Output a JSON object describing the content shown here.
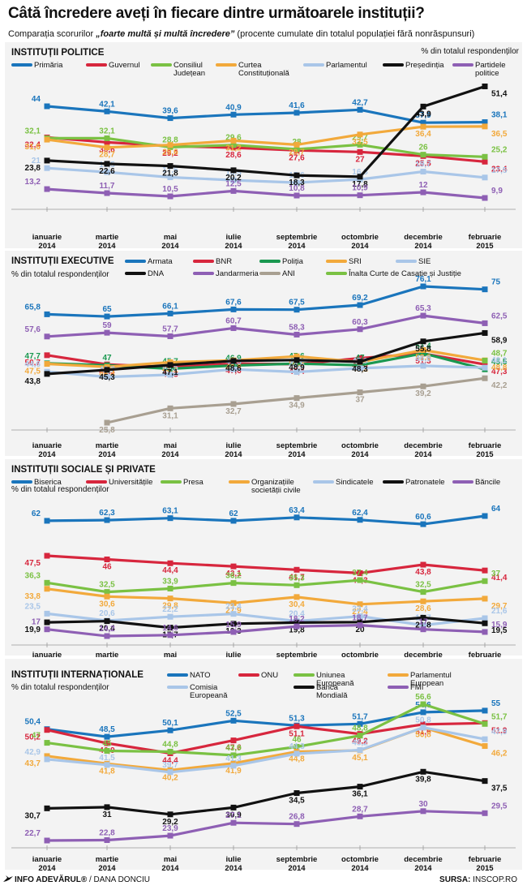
{
  "title": "Câtă încredere aveți în fiecare dintre următoarele instituții?",
  "subtitle_prefix": "Comparația scorurilor ",
  "subtitle_emphasis": "„foarte multă și multă încredere”",
  "subtitle_suffix": " (procente cumulate din totalul populației fără nonrăspunsuri)",
  "footer_left_bold": "INFO ADEVĂRUL®",
  "footer_left_rest": " / DANA DONCIU",
  "footer_right_label": "SURSA:",
  "footer_right_value": " INSCOP.RO",
  "chart_data": [
    {
      "type": "line",
      "title": "INSTITUȚII POLITICE",
      "ylabel": "% din totalul respondenților",
      "categories": [
        "ianuarie 2014",
        "martie 2014",
        "mai 2014",
        "iulie 2014",
        "septembrie 2014",
        "octombrie 2014",
        "decembrie 2014",
        "februarie 2015"
      ],
      "series": [
        {
          "name": "Primăria",
          "color": "#1a75bc",
          "values": [
            44,
            42.1,
            39.6,
            40.9,
            41.6,
            42.7,
            37.9,
            38.1
          ]
        },
        {
          "name": "Guvernul",
          "color": "#d7263d",
          "values": [
            32.4,
            30.6,
            29.2,
            28.6,
            27.6,
            27,
            25.5,
            23.4
          ]
        },
        {
          "name": "Consiliul Județean",
          "color": "#7ac143",
          "values": [
            32.1,
            32.1,
            28.8,
            29.6,
            28,
            29.7,
            26,
            25.2
          ]
        },
        {
          "name": "Curtea Constituțională",
          "color": "#f2a93b",
          "values": [
            31.6,
            28.7,
            29.6,
            31.2,
            29.7,
            33.5,
            36.4,
            36.5
          ]
        },
        {
          "name": "Parlamentul",
          "color": "#a9c6e8",
          "values": [
            21,
            19.5,
            17.6,
            16.5,
            15.6,
            16.8,
            19.7,
            17.5
          ]
        },
        {
          "name": "Președinția",
          "color": "#111111",
          "values": [
            23.8,
            22.6,
            21.8,
            20.2,
            18.3,
            17.8,
            43.9,
            51.4
          ]
        },
        {
          "name": "Partidele politice",
          "color": "#8e5fb4",
          "values": [
            13.2,
            11.7,
            10.5,
            12.5,
            10.8,
            10.9,
            12,
            9.9
          ]
        }
      ]
    },
    {
      "type": "line",
      "title": "INSTITUȚII EXECUTIVE",
      "ylabel": "% din totalul respondenților",
      "categories": [
        "ianuarie 2014",
        "martie 2014",
        "mai 2014",
        "iulie 2014",
        "septembrie 2014",
        "octombrie 2014",
        "decembrie 2014",
        "februarie 2015"
      ],
      "series": [
        {
          "name": "Armata",
          "color": "#1a75bc",
          "values": [
            65.8,
            65,
            66.1,
            67.6,
            67.5,
            69.2,
            76.1,
            75
          ]
        },
        {
          "name": "BNR",
          "color": "#d7263d",
          "values": [
            50.7,
            47.3,
            46.3,
            47.6,
            47.4,
            49.6,
            51.3,
            47.3
          ]
        },
        {
          "name": "Poliția",
          "color": "#1a9850",
          "values": [
            47.7,
            47,
            45.7,
            46.9,
            47.6,
            47,
            51.4,
            45.5
          ]
        },
        {
          "name": "SRI",
          "color": "#f2a93b",
          "values": [
            47.5,
            46.4,
            48.1,
            48.8,
            50.3,
            48.2,
            52.6,
            48.8
          ]
        },
        {
          "name": "SIE",
          "color": "#a9c6e8",
          "values": [
            44.6,
            42.7,
            43.5,
            45.5,
            44.5,
            45.9,
            46.8,
            46.1
          ]
        },
        {
          "name": "DNA",
          "color": "#111111",
          "values": [
            43.8,
            45.3,
            47.1,
            48.6,
            48.9,
            48.3,
            55.8,
            58.9
          ]
        },
        {
          "name": "Jandarmeria",
          "color": "#8e5fb4",
          "values": [
            57.6,
            59,
            57.7,
            60.7,
            58.3,
            60.3,
            65.3,
            62.5
          ]
        },
        {
          "name": "ANI",
          "color": "#a89f91",
          "values": [
            null,
            25.8,
            31.1,
            32.7,
            34.9,
            37,
            39.2,
            42.2
          ]
        },
        {
          "name": "Înalta Curte de Casație și Justiție",
          "color": "#7ac143",
          "values": [
            null,
            null,
            null,
            null,
            null,
            null,
            null,
            48.7
          ]
        }
      ]
    },
    {
      "type": "line",
      "title": "INSTITUȚII SOCIALE ȘI PRIVATE",
      "ylabel": "% din totalul respondenților",
      "categories": [
        "ianuarie 2014",
        "martie 2014",
        "mai 2014",
        "iulie 2014",
        "septembrie 2014",
        "octombrie 2014",
        "decembrie 2014",
        "februarie 2015"
      ],
      "series": [
        {
          "name": "Biserica",
          "color": "#1a75bc",
          "values": [
            62,
            62.3,
            63.1,
            62,
            63.4,
            62.4,
            60.6,
            64
          ]
        },
        {
          "name": "Universitățile",
          "color": "#d7263d",
          "values": [
            47.5,
            46,
            44.4,
            43.1,
            41.7,
            40.3,
            43.8,
            41.4
          ]
        },
        {
          "name": "Presa",
          "color": "#7ac143",
          "values": [
            36.3,
            32.5,
            33.9,
            36.2,
            35.3,
            37.4,
            32.5,
            37
          ]
        },
        {
          "name": "Organizațiile societății civile",
          "color": "#f2a93b",
          "values": [
            33.8,
            30.6,
            29.8,
            27.9,
            30.4,
            27.4,
            28.6,
            29.7
          ]
        },
        {
          "name": "Sindicatele",
          "color": "#a9c6e8",
          "values": [
            23.5,
            20.6,
            22.2,
            23.4,
            20.4,
            22.4,
            18.7,
            21.6
          ]
        },
        {
          "name": "Patronatele",
          "color": "#111111",
          "values": [
            19.9,
            20.4,
            17.7,
            19.3,
            19.8,
            20,
            21.8,
            19.5
          ]
        },
        {
          "name": "Băncile",
          "color": "#8e5fb4",
          "values": [
            17,
            14.2,
            14.6,
            15.9,
            18.2,
            18.7,
            17,
            15.9
          ]
        }
      ]
    },
    {
      "type": "line",
      "title": "INSTITUȚII INTERNAȚIONALE",
      "ylabel": "% din totalul respondenților",
      "categories": [
        "ianuarie 2014",
        "martie 2014",
        "mai 2014",
        "iulie 2014",
        "septembrie 2014",
        "octombrie 2014",
        "decembrie 2014",
        "februarie 2015"
      ],
      "series": [
        {
          "name": "NATO",
          "color": "#1a75bc",
          "values": [
            50.4,
            48.5,
            50.1,
            52.5,
            51.3,
            51.7,
            54.6,
            55
          ]
        },
        {
          "name": "ONU",
          "color": "#d7263d",
          "values": [
            50.2,
            46.9,
            44.4,
            47.6,
            51.1,
            49.2,
            51.6,
            51.9
          ]
        },
        {
          "name": "Uniunea Europeană",
          "color": "#7ac143",
          "values": [
            47,
            45,
            44.8,
            43.9,
            46,
            48.8,
            56.6,
            51.7
          ]
        },
        {
          "name": "Parlamentul European",
          "color": "#f2a93b",
          "values": [
            43.7,
            41.8,
            40.2,
            41.9,
            44.8,
            45.1,
            50.8,
            46.2
          ]
        },
        {
          "name": "Comisia Europeană",
          "color": "#a9c6e8",
          "values": [
            42.9,
            41.5,
            39.7,
            41.3,
            44.3,
            45.2,
            50.8,
            47.9
          ]
        },
        {
          "name": "Banca Mondială",
          "color": "#111111",
          "values": [
            30.7,
            31,
            29.2,
            30.9,
            34.5,
            36.1,
            39.8,
            37.5
          ]
        },
        {
          "name": "FMI",
          "color": "#8e5fb4",
          "values": [
            22.7,
            22.8,
            23.9,
            27.1,
            26.8,
            28.7,
            30,
            29.5
          ]
        }
      ]
    }
  ]
}
